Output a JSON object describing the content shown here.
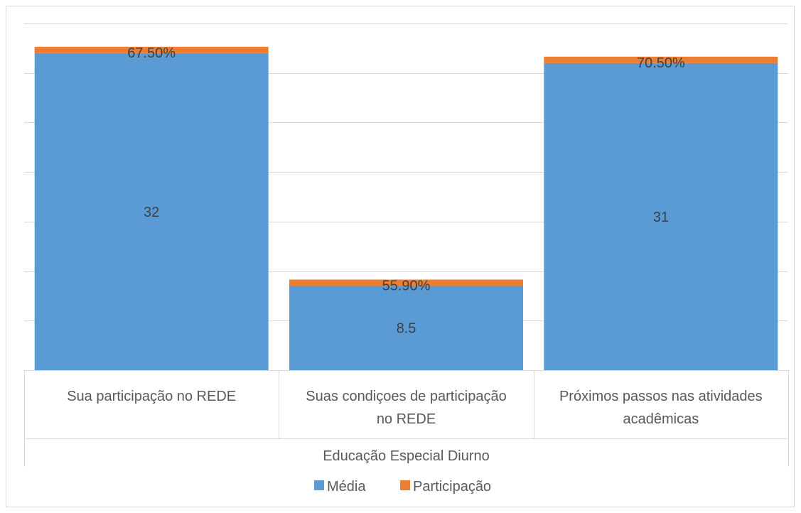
{
  "chart_data": {
    "type": "bar",
    "stacked": true,
    "title": "",
    "xlabel": "",
    "ylabel": "",
    "group_label": "Educação Especial Diurno",
    "categories": [
      [
        "Sua participação no REDE"
      ],
      [
        "Suas condiçoes de participação",
        "no REDE"
      ],
      [
        "Próximos passos nas atividades",
        "acadêmicas"
      ]
    ],
    "series": [
      {
        "name": "Média",
        "color": "#5b9bd5",
        "values": [
          32,
          8.5,
          31
        ],
        "labels": [
          "32",
          "8.5",
          "31"
        ]
      },
      {
        "name": "Participação",
        "color": "#ed7d31",
        "values": [
          0.675,
          0.559,
          0.705
        ],
        "labels": [
          "67.50%",
          "55.90%",
          "70.50%"
        ]
      }
    ],
    "ylim": [
      0,
      35
    ],
    "grid": true,
    "legend": "bottom"
  }
}
